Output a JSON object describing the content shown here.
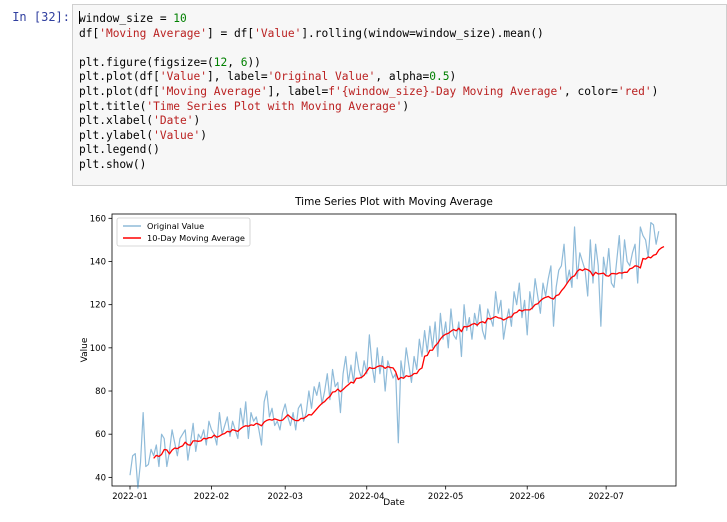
{
  "cell": {
    "prompt": "In [32]:",
    "code_lines": [
      "window_size = 10",
      "df['Moving Average'] = df['Value'].rolling(window=window_size).mean()",
      "",
      "plt.figure(figsize=(12, 6))",
      "plt.plot(df['Value'], label='Original Value', alpha=0.5)",
      "plt.plot(df['Moving Average'], label=f'{window_size}-Day Moving Average', color='red')",
      "plt.title('Time Series Plot with Moving Average')",
      "plt.xlabel('Date')",
      "plt.ylabel('Value')",
      "plt.legend()",
      "plt.show()"
    ]
  },
  "chart_data": {
    "type": "line",
    "title": "Time Series Plot with Moving Average",
    "xlabel": "Date",
    "ylabel": "Value",
    "x_start": "2022-01-01",
    "x_ticks": [
      "2022-01",
      "2022-02",
      "2022-03",
      "2022-04",
      "2022-05",
      "2022-06",
      "2022-07"
    ],
    "y_ticks": [
      40,
      60,
      80,
      100,
      120,
      140,
      160
    ],
    "ylim": [
      36,
      162
    ],
    "grid": false,
    "legend_position": "upper-left",
    "series": [
      {
        "name": "Original Value",
        "color": "#1f77b4",
        "alpha": 0.5,
        "values": [
          41,
          50,
          51,
          35,
          47,
          70,
          45,
          46,
          53,
          50,
          55,
          45,
          60,
          58,
          45,
          52,
          62,
          56,
          50,
          58,
          60,
          62,
          48,
          56,
          65,
          52,
          60,
          58,
          62,
          55,
          66,
          62,
          60,
          55,
          70,
          60,
          64,
          68,
          59,
          66,
          62,
          58,
          72,
          64,
          75,
          58,
          70,
          66,
          68,
          62,
          55,
          75,
          80,
          68,
          72,
          64,
          66,
          62,
          70,
          74,
          68,
          64,
          70,
          62,
          72,
          74,
          66,
          70,
          80,
          72,
          82,
          78,
          84,
          74,
          80,
          88,
          76,
          90,
          82,
          84,
          70,
          88,
          96,
          84,
          92,
          84,
          98,
          90,
          86,
          94,
          88,
          106,
          92,
          84,
          100,
          88,
          96,
          80,
          94,
          90,
          86,
          88,
          56,
          94,
          86,
          100,
          92,
          84,
          96,
          90,
          104,
          96,
          108,
          98,
          110,
          100,
          112,
          96,
          116,
          104,
          112,
          100,
          118,
          106,
          104,
          112,
          96,
          120,
          108,
          114,
          104,
          116,
          110,
          120,
          108,
          104,
          118,
          114,
          110,
          126,
          116,
          122,
          104,
          112,
          118,
          110,
          126,
          120,
          130,
          114,
          122,
          106,
          126,
          118,
          132,
          124,
          116,
          130,
          124,
          132,
          138,
          110,
          128,
          136,
          138,
          148,
          130,
          136,
          128,
          156,
          132,
          144,
          140,
          136,
          124,
          150,
          130,
          148,
          138,
          110,
          142,
          134,
          146,
          130,
          128,
          140,
          152,
          132,
          150,
          140,
          138,
          144,
          148,
          130,
          156,
          152,
          150,
          142,
          158,
          157,
          148,
          154
        ]
      },
      {
        "name": "10-Day Moving Average",
        "color": "#ff0000",
        "alpha": 1,
        "values": [
          null,
          null,
          null,
          null,
          null,
          null,
          null,
          null,
          null,
          48.8,
          50.2,
          49.7,
          50.6,
          52.9,
          52.7,
          50.9,
          52.6,
          53.6,
          53.3,
          54.1,
          54.6,
          56.3,
          55.1,
          54.9,
          56.9,
          56.9,
          56.7,
          56.9,
          58.1,
          57.8,
          58.4,
          58.4,
          59.6,
          58.6,
          59.1,
          59.9,
          60.3,
          61.3,
          61.0,
          62.1,
          61.7,
          61.3,
          62.5,
          63.4,
          63.9,
          63.7,
          64.3,
          64.1,
          65.0,
          64.6,
          63.9,
          65.6,
          66.4,
          66.8,
          66.5,
          67.1,
          66.7,
          66.3,
          66.5,
          67.7,
          69.0,
          67.9,
          66.9,
          66.3,
          66.3,
          67.3,
          67.3,
          68.1,
          69.1,
          68.9,
          70.3,
          71.7,
          73.1,
          74.3,
          75.1,
          76.5,
          77.5,
          79.5,
          79.7,
          80.9,
          79.7,
          80.7,
          81.9,
          82.9,
          84.1,
          83.7,
          85.9,
          85.9,
          86.3,
          87.3,
          89.1,
          90.9,
          90.5,
          90.5,
          91.3,
          91.7,
          91.5,
          90.5,
          91.3,
          90.9,
          90.7,
          88.9,
          85.3,
          86.3,
          85.9,
          87.1,
          86.7,
          87.1,
          88.1,
          88.1,
          89.9,
          90.7,
          96.1,
          96.5,
          98.9,
          98.9,
          100.9,
          102.1,
          104.1,
          105.5,
          106.3,
          106.7,
          107.7,
          108.5,
          107.9,
          109.1,
          107.5,
          109.9,
          109.7,
          110.1,
          110.9,
          111.3,
          110.5,
          111.7,
          112.1,
          111.5,
          113.7,
          113.3,
          113.9,
          114.5,
          113.9,
          113.7,
          112.9,
          113.5,
          114.3,
          114.3,
          116.0,
          116.4,
          117.6,
          117.0,
          117.6,
          117.6,
          117.6,
          118.6,
          120.0,
          120.4,
          121.8,
          122.8,
          123.4,
          123.8,
          123.0,
          122.6,
          124.2,
          124.6,
          126.4,
          127.8,
          129.6,
          131.4,
          132.8,
          133.4,
          135.4,
          136.4,
          135.8,
          136.6,
          136.2,
          135.4,
          133.4,
          135.0,
          134.2,
          134.4,
          134.6,
          133.4,
          133.2,
          134.4,
          134.4,
          134.2,
          134.8,
          134.6,
          135.0,
          135.0,
          136.6,
          137.0,
          138.0,
          137.8,
          137.0,
          141.4,
          141.1,
          142.1,
          141.7,
          142.9,
          143.3,
          145.3,
          146.3,
          146.9
        ]
      }
    ]
  }
}
